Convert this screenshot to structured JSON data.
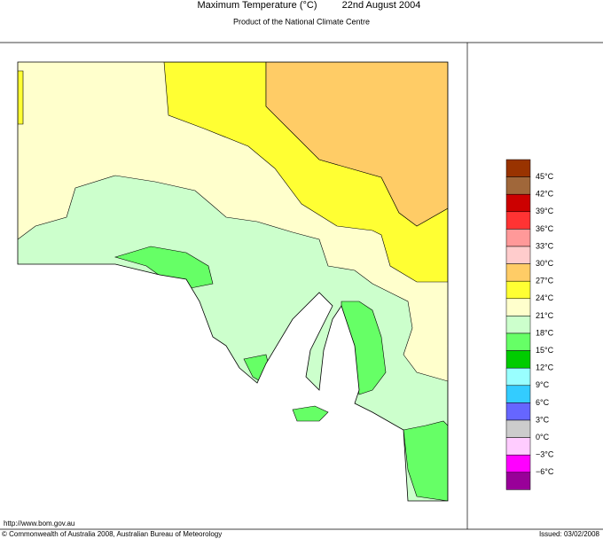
{
  "header": {
    "title": "Maximum Temperature (°C)",
    "date": "22nd August 2004",
    "subtitle": "Product of the National Climate Centre"
  },
  "legend": {
    "colors": [
      "#993300",
      "#a0673a",
      "#cc0000",
      "#ff3333",
      "#ff9999",
      "#ffcccc",
      "#ffcc66",
      "#ffff33",
      "#ffffcc",
      "#ccffcc",
      "#66ff66",
      "#00cc00",
      "#99ffff",
      "#33ccff",
      "#6666ff",
      "#cccccc",
      "#ffccff",
      "#ff00ff",
      "#990099"
    ],
    "labels": [
      "45°C",
      "42°C",
      "39°C",
      "36°C",
      "33°C",
      "30°C",
      "27°C",
      "24°C",
      "21°C",
      "18°C",
      "15°C",
      "12°C",
      "9°C",
      "6°C",
      "3°C",
      "0°C",
      "−3°C",
      "−6°C"
    ]
  },
  "footer": {
    "url": "http://www.bom.gov.au",
    "copyright": "© Commonwealth of Australia 2008, Australian Bureau of Meteorology",
    "issued": "Issued: 03/02/2008"
  }
}
